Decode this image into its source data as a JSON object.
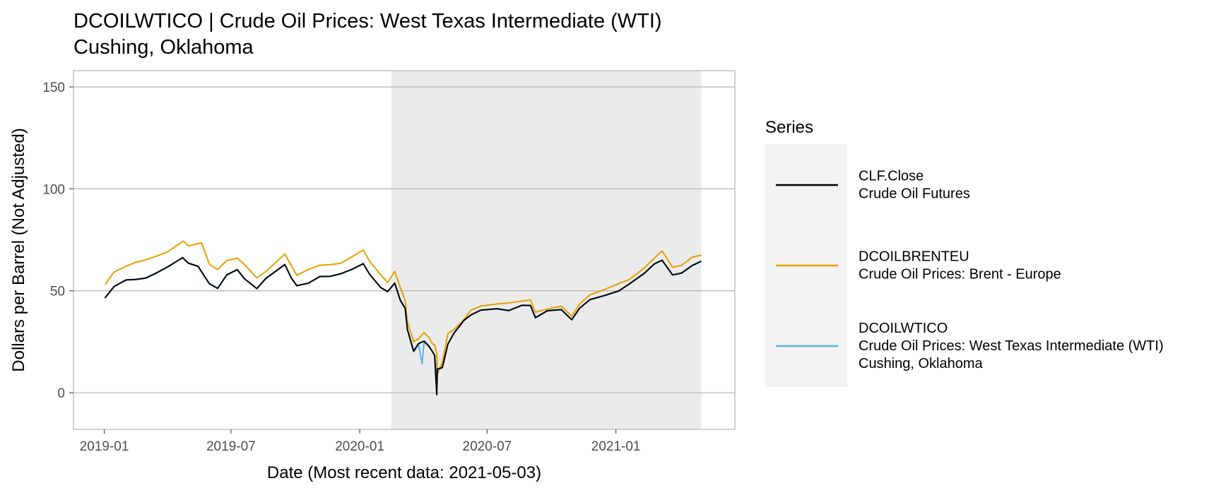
{
  "chart_data": {
    "type": "line",
    "title": "DCOILWTICO | Crude Oil Prices: West Texas Intermediate (WTI)",
    "subtitle": "Cushing, Oklahoma",
    "xlabel": "Date (Most recent data: 2021-05-03)",
    "ylabel": "Dollars per Barrel (Not Adjusted)",
    "xlim": [
      "2018-11-18",
      "2021-06-20"
    ],
    "ylim": [
      -18,
      158
    ],
    "x_ticks": [
      "2019-01",
      "2019-07",
      "2020-01",
      "2020-07",
      "2021-01"
    ],
    "y_ticks": [
      0,
      50,
      100,
      150
    ],
    "grid": "horizontal",
    "legend_position": "right",
    "shaded_region": {
      "start": "2020-02-15",
      "end": "2021-05-03"
    },
    "legend_title": "Series",
    "series": [
      {
        "name": "CLF.Close",
        "description": "Crude Oil Futures",
        "color": "#000000",
        "points": [
          [
            "2019-01-02",
            46.5
          ],
          [
            "2019-01-15",
            52.1
          ],
          [
            "2019-02-01",
            55.3
          ],
          [
            "2019-02-15",
            55.6
          ],
          [
            "2019-03-01",
            56.2
          ],
          [
            "2019-03-15",
            58.5
          ],
          [
            "2019-04-01",
            61.6
          ],
          [
            "2019-04-23",
            66.3
          ],
          [
            "2019-05-01",
            63.6
          ],
          [
            "2019-05-15",
            62.0
          ],
          [
            "2019-05-31",
            53.5
          ],
          [
            "2019-06-12",
            51.2
          ],
          [
            "2019-06-25",
            57.8
          ],
          [
            "2019-07-10",
            60.4
          ],
          [
            "2019-07-20",
            56.0
          ],
          [
            "2019-08-07",
            51.1
          ],
          [
            "2019-08-20",
            56.1
          ],
          [
            "2019-09-16",
            62.9
          ],
          [
            "2019-09-25",
            56.5
          ],
          [
            "2019-10-03",
            52.5
          ],
          [
            "2019-10-20",
            53.8
          ],
          [
            "2019-11-05",
            57.0
          ],
          [
            "2019-11-20",
            57.1
          ],
          [
            "2019-12-05",
            58.4
          ],
          [
            "2019-12-20",
            60.4
          ],
          [
            "2020-01-06",
            63.3
          ],
          [
            "2020-01-15",
            58.2
          ],
          [
            "2020-01-31",
            51.6
          ],
          [
            "2020-02-10",
            49.6
          ],
          [
            "2020-02-20",
            53.8
          ],
          [
            "2020-02-28",
            45.3
          ],
          [
            "2020-03-06",
            41.3
          ],
          [
            "2020-03-09",
            31.1
          ],
          [
            "2020-03-18",
            20.4
          ],
          [
            "2020-03-25",
            24.1
          ],
          [
            "2020-04-02",
            25.3
          ],
          [
            "2020-04-09",
            22.8
          ],
          [
            "2020-04-14",
            20.1
          ],
          [
            "2020-04-17",
            18.3
          ],
          [
            "2020-04-20",
            -1.0
          ],
          [
            "2020-04-21",
            11.6
          ],
          [
            "2020-04-28",
            12.3
          ],
          [
            "2020-05-06",
            23.9
          ],
          [
            "2020-05-15",
            29.4
          ],
          [
            "2020-05-29",
            35.5
          ],
          [
            "2020-06-08",
            38.2
          ],
          [
            "2020-06-22",
            40.5
          ],
          [
            "2020-07-15",
            41.2
          ],
          [
            "2020-08-01",
            40.3
          ],
          [
            "2020-08-20",
            42.9
          ],
          [
            "2020-09-01",
            42.8
          ],
          [
            "2020-09-08",
            36.8
          ],
          [
            "2020-09-25",
            40.2
          ],
          [
            "2020-10-15",
            40.8
          ],
          [
            "2020-10-30",
            35.8
          ],
          [
            "2020-11-10",
            41.4
          ],
          [
            "2020-11-25",
            45.7
          ],
          [
            "2020-12-15",
            47.6
          ],
          [
            "2021-01-05",
            49.9
          ],
          [
            "2021-01-20",
            53.3
          ],
          [
            "2021-02-10",
            58.4
          ],
          [
            "2021-02-25",
            63.2
          ],
          [
            "2021-03-08",
            65.0
          ],
          [
            "2021-03-23",
            57.8
          ],
          [
            "2021-04-05",
            58.7
          ],
          [
            "2021-04-20",
            62.4
          ],
          [
            "2021-05-03",
            64.5
          ]
        ]
      },
      {
        "name": "DCOILBRENTEU",
        "description": "Crude Oil Prices: Brent - Europe",
        "color": "#E69F00",
        "points": [
          [
            "2019-01-02",
            53.0
          ],
          [
            "2019-01-15",
            59.2
          ],
          [
            "2019-02-01",
            62.0
          ],
          [
            "2019-02-15",
            64.0
          ],
          [
            "2019-03-01",
            65.1
          ],
          [
            "2019-03-15",
            66.8
          ],
          [
            "2019-04-01",
            69.0
          ],
          [
            "2019-04-24",
            74.4
          ],
          [
            "2019-05-01",
            72.0
          ],
          [
            "2019-05-20",
            73.5
          ],
          [
            "2019-05-31",
            63.1
          ],
          [
            "2019-06-12",
            60.4
          ],
          [
            "2019-06-25",
            64.8
          ],
          [
            "2019-07-10",
            66.0
          ],
          [
            "2019-07-20",
            63.0
          ],
          [
            "2019-08-07",
            56.3
          ],
          [
            "2019-08-20",
            59.5
          ],
          [
            "2019-09-16",
            68.0
          ],
          [
            "2019-09-25",
            62.5
          ],
          [
            "2019-10-03",
            57.6
          ],
          [
            "2019-10-20",
            60.5
          ],
          [
            "2019-11-05",
            62.5
          ],
          [
            "2019-11-20",
            62.8
          ],
          [
            "2019-12-05",
            63.5
          ],
          [
            "2019-12-20",
            66.5
          ],
          [
            "2020-01-06",
            70.0
          ],
          [
            "2020-01-15",
            64.5
          ],
          [
            "2020-01-31",
            57.8
          ],
          [
            "2020-02-10",
            54.0
          ],
          [
            "2020-02-20",
            59.5
          ],
          [
            "2020-02-28",
            51.5
          ],
          [
            "2020-03-06",
            45.3
          ],
          [
            "2020-03-09",
            35.0
          ],
          [
            "2020-03-18",
            25.0
          ],
          [
            "2020-03-25",
            26.5
          ],
          [
            "2020-04-02",
            29.5
          ],
          [
            "2020-04-09",
            27.0
          ],
          [
            "2020-04-14",
            24.0
          ],
          [
            "2020-04-17",
            23.5
          ],
          [
            "2020-04-20",
            19.0
          ],
          [
            "2020-04-21",
            9.1
          ],
          [
            "2020-04-28",
            15.0
          ],
          [
            "2020-05-06",
            29.0
          ],
          [
            "2020-05-15",
            31.0
          ],
          [
            "2020-05-29",
            36.0
          ],
          [
            "2020-06-08",
            40.5
          ],
          [
            "2020-06-22",
            42.5
          ],
          [
            "2020-07-15",
            43.5
          ],
          [
            "2020-08-01",
            44.0
          ],
          [
            "2020-08-20",
            45.0
          ],
          [
            "2020-09-01",
            45.5
          ],
          [
            "2020-09-08",
            39.5
          ],
          [
            "2020-09-25",
            41.0
          ],
          [
            "2020-10-15",
            42.5
          ],
          [
            "2020-10-30",
            37.5
          ],
          [
            "2020-11-10",
            43.5
          ],
          [
            "2020-11-25",
            48.0
          ],
          [
            "2020-12-15",
            50.5
          ],
          [
            "2021-01-05",
            53.5
          ],
          [
            "2021-01-20",
            55.5
          ],
          [
            "2021-02-10",
            61.0
          ],
          [
            "2021-02-25",
            66.0
          ],
          [
            "2021-03-08",
            69.5
          ],
          [
            "2021-03-23",
            61.5
          ],
          [
            "2021-04-05",
            62.5
          ],
          [
            "2021-04-20",
            66.5
          ],
          [
            "2021-05-03",
            67.5
          ]
        ]
      },
      {
        "name": "DCOILWTICO",
        "description": "Crude Oil Prices: West Texas Intermediate (WTI)",
        "description_line2": "Cushing, Oklahoma",
        "color": "#56B4E9",
        "points": [
          [
            "2019-01-02",
            46.3
          ],
          [
            "2019-01-15",
            52.0
          ],
          [
            "2019-02-01",
            55.2
          ],
          [
            "2019-02-15",
            55.5
          ],
          [
            "2019-03-01",
            56.1
          ],
          [
            "2019-03-15",
            58.4
          ],
          [
            "2019-04-01",
            61.5
          ],
          [
            "2019-04-23",
            66.2
          ],
          [
            "2019-05-01",
            63.5
          ],
          [
            "2019-05-15",
            61.9
          ],
          [
            "2019-05-31",
            53.4
          ],
          [
            "2019-06-12",
            51.1
          ],
          [
            "2019-06-25",
            57.7
          ],
          [
            "2019-07-10",
            60.3
          ],
          [
            "2019-07-20",
            55.9
          ],
          [
            "2019-08-07",
            51.0
          ],
          [
            "2019-08-20",
            56.0
          ],
          [
            "2019-09-16",
            62.8
          ],
          [
            "2019-09-25",
            56.4
          ],
          [
            "2019-10-03",
            52.4
          ],
          [
            "2019-10-20",
            53.7
          ],
          [
            "2019-11-05",
            56.9
          ],
          [
            "2019-11-20",
            57.0
          ],
          [
            "2019-12-05",
            58.3
          ],
          [
            "2019-12-20",
            60.3
          ],
          [
            "2020-01-06",
            63.2
          ],
          [
            "2020-01-15",
            58.1
          ],
          [
            "2020-01-31",
            51.5
          ],
          [
            "2020-02-10",
            49.5
          ],
          [
            "2020-02-20",
            53.7
          ],
          [
            "2020-02-28",
            45.2
          ],
          [
            "2020-03-06",
            41.2
          ],
          [
            "2020-03-09",
            31.0
          ],
          [
            "2020-03-18",
            20.0
          ],
          [
            "2020-03-25",
            24.0
          ],
          [
            "2020-03-30",
            14.1
          ],
          [
            "2020-04-02",
            25.0
          ],
          [
            "2020-04-09",
            22.5
          ],
          [
            "2020-04-14",
            20.0
          ],
          [
            "2020-04-17",
            18.2
          ],
          [
            "2020-04-20",
            9.0
          ],
          [
            "2020-04-21",
            11.5
          ],
          [
            "2020-04-28",
            12.2
          ],
          [
            "2020-05-06",
            23.8
          ],
          [
            "2020-05-15",
            29.3
          ],
          [
            "2020-05-29",
            35.4
          ],
          [
            "2020-06-08",
            38.1
          ],
          [
            "2020-06-22",
            40.4
          ],
          [
            "2020-07-15",
            41.1
          ],
          [
            "2020-08-01",
            40.2
          ],
          [
            "2020-08-20",
            42.8
          ],
          [
            "2020-09-01",
            42.7
          ],
          [
            "2020-09-08",
            36.7
          ],
          [
            "2020-09-25",
            40.1
          ],
          [
            "2020-10-15",
            40.7
          ],
          [
            "2020-10-30",
            35.7
          ],
          [
            "2020-11-10",
            41.3
          ],
          [
            "2020-11-25",
            45.6
          ],
          [
            "2020-12-15",
            47.5
          ],
          [
            "2021-01-05",
            49.8
          ],
          [
            "2021-01-20",
            53.2
          ],
          [
            "2021-02-10",
            58.3
          ],
          [
            "2021-02-25",
            63.1
          ],
          [
            "2021-03-08",
            64.9
          ],
          [
            "2021-03-23",
            57.7
          ],
          [
            "2021-04-05",
            58.6
          ],
          [
            "2021-04-20",
            62.3
          ],
          [
            "2021-05-03",
            64.4
          ]
        ]
      }
    ]
  }
}
